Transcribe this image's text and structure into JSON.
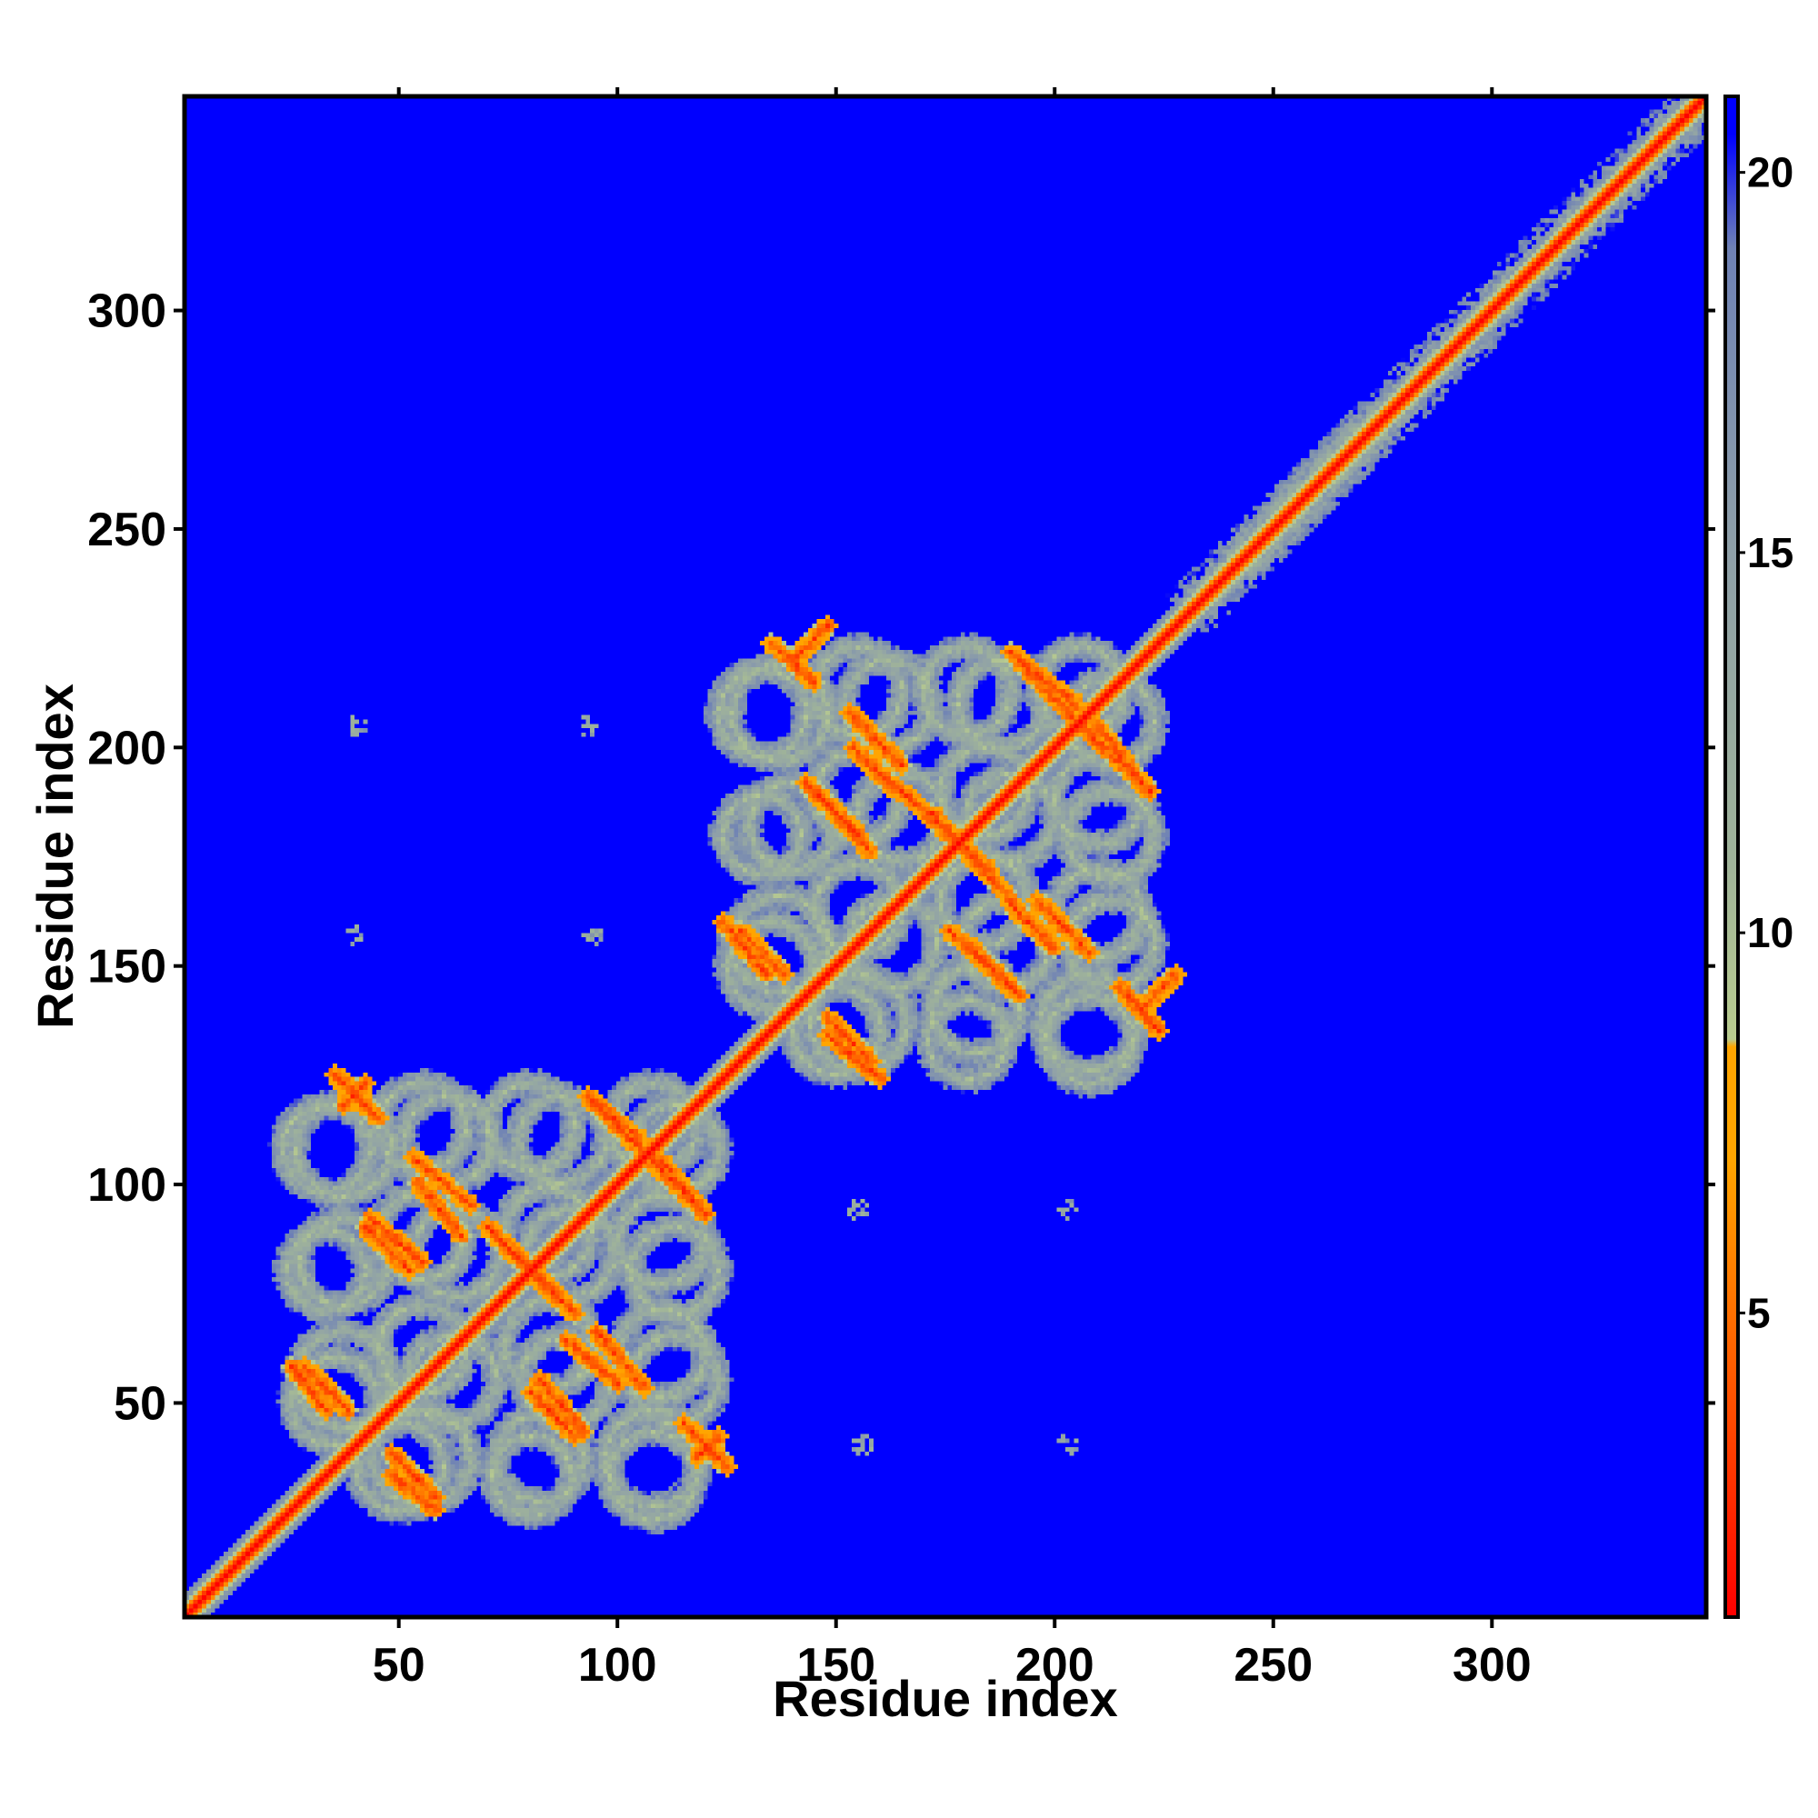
{
  "chart_data": {
    "type": "heatmap",
    "title": "",
    "xlabel": "Residue index",
    "ylabel": "Residue index",
    "xlim": [
      1,
      349
    ],
    "ylim": [
      1,
      349
    ],
    "x_ticks": [
      "50",
      "100",
      "150",
      "200",
      "250",
      "300"
    ],
    "y_ticks": [
      "50",
      "100",
      "150",
      "200",
      "250",
      "300"
    ],
    "x_tick_values": [
      50,
      100,
      150,
      200,
      250,
      300
    ],
    "y_tick_values": [
      50,
      100,
      150,
      200,
      250,
      300
    ],
    "colorbar": {
      "range": [
        1,
        21
      ],
      "ticks": [
        "5",
        "10",
        "15",
        "20"
      ],
      "tick_values": [
        5,
        10,
        15,
        20
      ],
      "stops": [
        {
          "value": 1,
          "color": "#ff0000"
        },
        {
          "value": 4,
          "color": "#ff5500"
        },
        {
          "value": 7,
          "color": "#ffa500"
        },
        {
          "value": 8.5,
          "color": "#ffa500"
        },
        {
          "value": 8.6,
          "color": "#b9cc8f"
        },
        {
          "value": 11,
          "color": "#9fb39a"
        },
        {
          "value": 15,
          "color": "#8fa0a8"
        },
        {
          "value": 19,
          "color": "#6f82b5"
        },
        {
          "value": 20.5,
          "color": "#0000ff"
        },
        {
          "value": 21,
          "color": "#0000ff"
        }
      ]
    },
    "background_color": "#0000ff",
    "diagonal": {
      "from": 1,
      "to": 349,
      "core_color": "#ff0000",
      "edge_color": "#ffa500"
    },
    "domains": [
      {
        "name": "",
        "start": 20,
        "end": 130
      },
      {
        "name": "",
        "start": 120,
        "end": 230
      }
    ],
    "features": {
      "strand_pairings": [
        {
          "x": [
            37,
            42
          ],
          "y": [
            118,
            123
          ]
        },
        {
          "x": [
            53,
            66
          ],
          "y": [
            106,
            95
          ]
        },
        {
          "x": [
            42,
            52
          ],
          "y": [
            90,
            80
          ]
        },
        {
          "x": [
            70,
            85
          ],
          "y": [
            90,
            75
          ]
        },
        {
          "x": [
            93,
            105
          ],
          "y": [
            120,
            110
          ]
        },
        {
          "x": [
            107,
            120
          ],
          "y": [
            106,
            93
          ]
        },
        {
          "x": [
            28,
            38
          ],
          "y": [
            58,
            48
          ]
        },
        {
          "x": [
            88,
            100
          ],
          "y": [
            64,
            54
          ]
        },
        {
          "x": [
            82,
            92
          ],
          "y": [
            55,
            43
          ]
        },
        {
          "x": [
            115,
            125
          ],
          "y": [
            45,
            35
          ]
        },
        {
          "x": [
            48,
            58
          ],
          "y": [
            33,
            25
          ]
        },
        {
          "x": [
            140,
            148
          ],
          "y": [
            220,
            228
          ]
        },
        {
          "x": [
            153,
            165
          ],
          "y": [
            208,
            196
          ]
        },
        {
          "x": [
            145,
            158
          ],
          "y": [
            190,
            176
          ]
        },
        {
          "x": [
            165,
            185
          ],
          "y": [
            190,
            172
          ]
        },
        {
          "x": [
            192,
            205
          ],
          "y": [
            220,
            210
          ]
        },
        {
          "x": [
            205,
            222
          ],
          "y": [
            206,
            190
          ]
        },
        {
          "x": [
            128,
            138
          ],
          "y": [
            158,
            148
          ]
        },
        {
          "x": [
            190,
            200
          ],
          "y": [
            164,
            154
          ]
        },
        {
          "x": [
            180,
            192
          ],
          "y": [
            155,
            143
          ]
        },
        {
          "x": [
            215,
            224
          ],
          "y": [
            145,
            135
          ]
        },
        {
          "x": [
            148,
            160
          ],
          "y": [
            134,
            124
          ]
        }
      ],
      "rings": [
        {
          "cx": 37,
          "cy": 108,
          "r": 11
        },
        {
          "cx": 61,
          "cy": 110,
          "r": 10
        },
        {
          "cx": 87,
          "cy": 110,
          "r": 10
        },
        {
          "cx": 113,
          "cy": 108,
          "r": 10
        },
        {
          "cx": 37,
          "cy": 82,
          "r": 10
        },
        {
          "cx": 63,
          "cy": 84,
          "r": 10
        },
        {
          "cx": 89,
          "cy": 84,
          "r": 10
        },
        {
          "cx": 113,
          "cy": 80,
          "r": 10
        },
        {
          "cx": 37,
          "cy": 55,
          "r": 11
        },
        {
          "cx": 62,
          "cy": 55,
          "r": 10
        },
        {
          "cx": 88,
          "cy": 55,
          "r": 10
        },
        {
          "cx": 113,
          "cy": 55,
          "r": 10
        },
        {
          "cx": 50,
          "cy": 35,
          "r": 10
        },
        {
          "cx": 80,
          "cy": 33,
          "r": 9
        },
        {
          "cx": 108,
          "cy": 33,
          "r": 10
        },
        {
          "cx": 137,
          "cy": 208,
          "r": 11
        },
        {
          "cx": 162,
          "cy": 210,
          "r": 10
        },
        {
          "cx": 188,
          "cy": 210,
          "r": 10
        },
        {
          "cx": 213,
          "cy": 206,
          "r": 10
        },
        {
          "cx": 140,
          "cy": 182,
          "r": 10
        },
        {
          "cx": 165,
          "cy": 184,
          "r": 10
        },
        {
          "cx": 190,
          "cy": 184,
          "r": 10
        },
        {
          "cx": 213,
          "cy": 180,
          "r": 10
        },
        {
          "cx": 137,
          "cy": 155,
          "r": 11
        },
        {
          "cx": 163,
          "cy": 155,
          "r": 10
        },
        {
          "cx": 189,
          "cy": 155,
          "r": 10
        },
        {
          "cx": 213,
          "cy": 155,
          "r": 10
        },
        {
          "cx": 150,
          "cy": 135,
          "r": 10
        },
        {
          "cx": 180,
          "cy": 133,
          "r": 9
        },
        {
          "cx": 208,
          "cy": 133,
          "r": 10
        }
      ],
      "near_diagonal_blobs": [
        {
          "c": 250,
          "w": 5
        },
        {
          "c": 262,
          "w": 6
        },
        {
          "c": 270,
          "w": 4
        },
        {
          "c": 285,
          "w": 3
        },
        {
          "c": 300,
          "w": 3
        },
        {
          "c": 240,
          "w": 3
        }
      ],
      "isolated_points": [
        {
          "x": 40,
          "y": 205
        },
        {
          "x": 93,
          "y": 205
        },
        {
          "x": 39,
          "y": 157
        },
        {
          "x": 94,
          "y": 157
        },
        {
          "x": 155,
          "y": 94
        },
        {
          "x": 203,
          "y": 94
        },
        {
          "x": 156,
          "y": 40
        },
        {
          "x": 203,
          "y": 40
        }
      ]
    }
  }
}
